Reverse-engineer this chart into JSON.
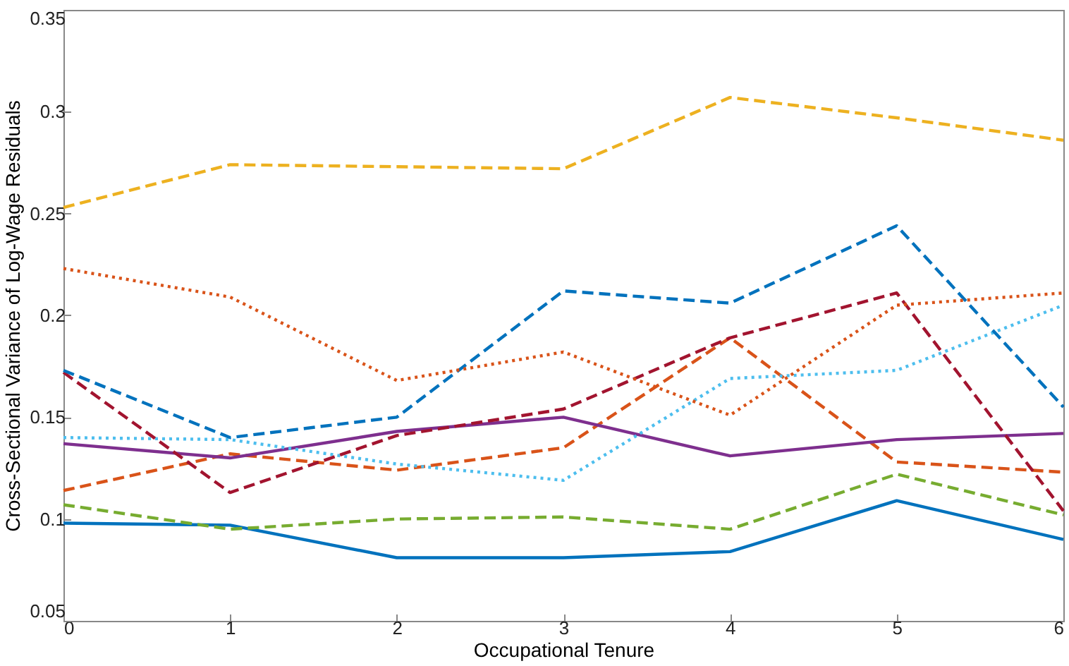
{
  "chart_data": {
    "type": "line",
    "xlabel": "Occupational Tenure",
    "ylabel": "Cross-Sectional Variance of Log-Wage Residuals",
    "x": [
      0,
      1,
      2,
      3,
      4,
      5,
      6
    ],
    "xlim": [
      0,
      6
    ],
    "xticks": [
      0,
      1,
      2,
      3,
      4,
      5,
      6
    ],
    "ylim": [
      0.05,
      0.35
    ],
    "yticks": [
      0.05,
      0.1,
      0.15,
      0.2,
      0.25,
      0.3,
      0.35
    ],
    "grid": false,
    "legend": false,
    "marker": "none",
    "series": [
      {
        "color": "#0072bd",
        "line_style": "solid",
        "values": [
          0.098,
          0.097,
          0.081,
          0.081,
          0.084,
          0.109,
          0.09
        ]
      },
      {
        "color": "#d95319",
        "line_style": "dashed",
        "values": [
          0.114,
          0.132,
          0.124,
          0.135,
          0.189,
          0.128,
          0.123
        ]
      },
      {
        "color": "#edb120",
        "line_style": "dashed",
        "values": [
          0.253,
          0.274,
          0.273,
          0.272,
          0.307,
          0.297,
          0.286
        ]
      },
      {
        "color": "#7e2f8e",
        "line_style": "solid",
        "values": [
          0.137,
          0.13,
          0.143,
          0.15,
          0.131,
          0.139,
          0.142
        ]
      },
      {
        "color": "#77ac30",
        "line_style": "dashed",
        "values": [
          0.107,
          0.095,
          0.1,
          0.101,
          0.095,
          0.122,
          0.102
        ]
      },
      {
        "color": "#4dbeee",
        "line_style": "dotted",
        "values": [
          0.14,
          0.139,
          0.127,
          0.119,
          0.169,
          0.173,
          0.205
        ]
      },
      {
        "color": "#a2142f",
        "line_style": "dashed",
        "values": [
          0.172,
          0.113,
          0.141,
          0.154,
          0.189,
          0.211,
          0.104
        ]
      },
      {
        "color": "#0072bd",
        "line_style": "dashed",
        "values": [
          0.173,
          0.14,
          0.15,
          0.212,
          0.206,
          0.244,
          0.155
        ]
      },
      {
        "color": "#d95319",
        "line_style": "dotted",
        "values": [
          0.223,
          0.209,
          0.168,
          0.182,
          0.151,
          0.205,
          0.211
        ]
      }
    ]
  }
}
